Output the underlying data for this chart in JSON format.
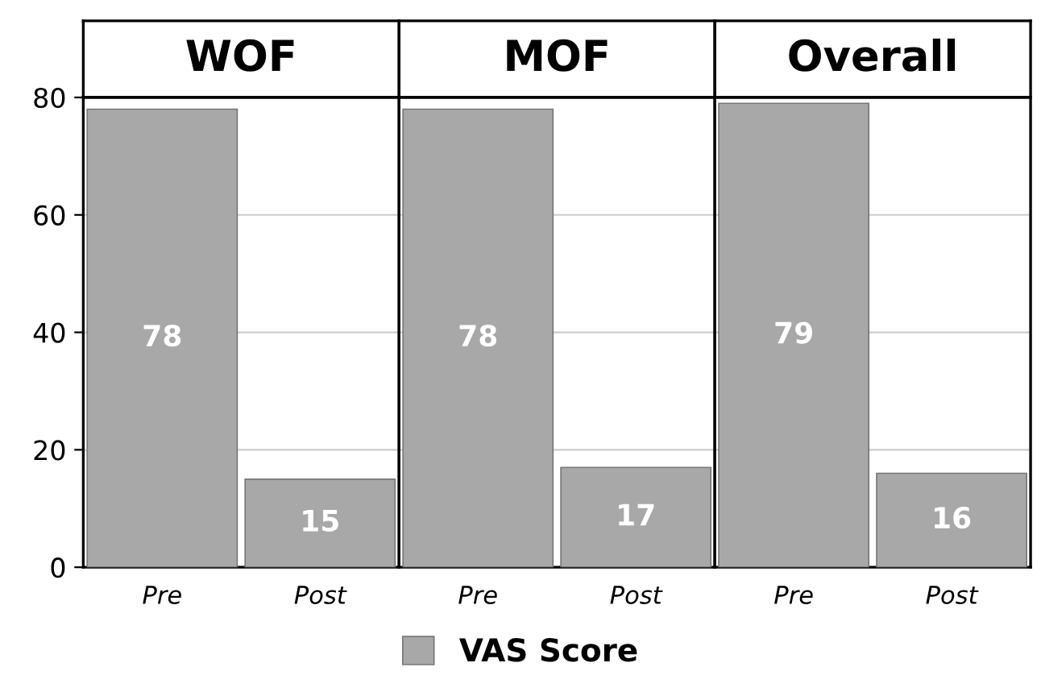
{
  "chart_data": [
    {
      "type": "bar",
      "title": "WOF",
      "categories": [
        "Pre",
        "Post"
      ],
      "series": [
        {
          "name": "VAS Score",
          "color": "#a8a8a8",
          "values": [
            78,
            15
          ]
        }
      ],
      "ylim": [
        0,
        80
      ],
      "yticks": [
        0,
        20,
        40,
        60,
        80
      ],
      "grid": "y",
      "data_labels": true,
      "legend": "bottom"
    },
    {
      "type": "bar",
      "title": "MOF",
      "categories": [
        "Pre",
        "Post"
      ],
      "series": [
        {
          "color": "#a8a8a8",
          "values": [
            78,
            17
          ]
        }
      ],
      "ylim": [
        0,
        80
      ],
      "yticks": [
        0,
        20,
        40,
        60,
        80
      ],
      "grid": "y",
      "data_labels": true,
      "tick_labels": "x"
    },
    {
      "type": "bar",
      "title": "Overall",
      "categories": [
        "Pre",
        "Post"
      ],
      "series": [
        {
          "color": "#a8a8a8",
          "values": [
            79,
            16
          ]
        }
      ],
      "ylim": [
        0,
        80
      ],
      "yticks": [
        0,
        20,
        40,
        60,
        80
      ],
      "grid": "y",
      "data_labels": true,
      "tick_labels": "x"
    }
  ]
}
